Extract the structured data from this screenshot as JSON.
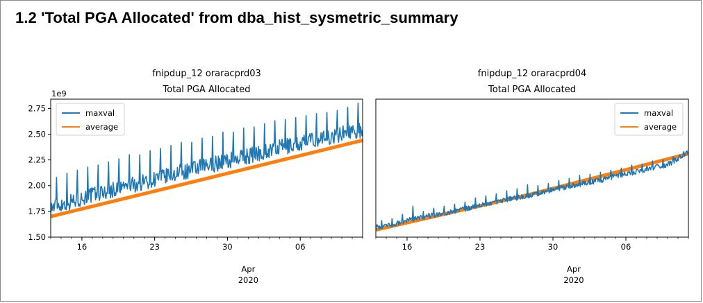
{
  "heading": "1.2  'Total PGA Allocated' from dba_hist_sysmetric_summary",
  "chart_data": [
    {
      "type": "line",
      "title": "fnipdup_12 oraracprd03",
      "subtitle": "Total PGA Allocated",
      "y_offset_label": "1e9",
      "ylim": [
        1.5,
        2.84
      ],
      "yticks": [
        1.5,
        1.75,
        2.0,
        2.25,
        2.5,
        2.75
      ],
      "ytick_labels": [
        "1.50",
        "1.75",
        "2.00",
        "2.25",
        "2.50",
        "2.75"
      ],
      "xlim": [
        "2020-03-13",
        "2020-04-12"
      ],
      "xticks": [
        {
          "date": "2020-03-16",
          "label": "16"
        },
        {
          "date": "2020-03-23",
          "label": "23"
        },
        {
          "date": "2020-03-30",
          "label": "30"
        },
        {
          "date": "2020-04-06",
          "label": "06"
        }
      ],
      "x_month_label": "Apr",
      "x_year_label": "2020",
      "grid": false,
      "legend_position": "upper-left",
      "series": [
        {
          "name": "maxval",
          "color": "#1f77b4",
          "x": [
            "2020-03-13",
            "2020-03-14",
            "2020-03-15",
            "2020-03-16",
            "2020-03-17",
            "2020-03-18",
            "2020-03-19",
            "2020-03-20",
            "2020-03-21",
            "2020-03-22",
            "2020-03-23",
            "2020-03-24",
            "2020-03-25",
            "2020-03-26",
            "2020-03-27",
            "2020-03-28",
            "2020-03-29",
            "2020-03-30",
            "2020-03-31",
            "2020-04-01",
            "2020-04-02",
            "2020-04-03",
            "2020-04-04",
            "2020-04-05",
            "2020-04-06",
            "2020-04-07",
            "2020-04-08",
            "2020-04-09",
            "2020-04-10",
            "2020-04-11",
            "2020-04-12"
          ],
          "values": [
            1.78,
            1.81,
            1.84,
            1.87,
            1.9,
            1.93,
            1.95,
            1.98,
            2.0,
            2.03,
            2.06,
            2.08,
            2.11,
            2.13,
            2.16,
            2.18,
            2.21,
            2.23,
            2.26,
            2.28,
            2.31,
            2.33,
            2.36,
            2.38,
            2.4,
            2.43,
            2.45,
            2.47,
            2.5,
            2.52,
            2.54
          ],
          "peaks": [
            2.08,
            2.12,
            2.15,
            2.18,
            2.2,
            2.23,
            2.26,
            2.3,
            2.3,
            2.34,
            2.36,
            2.39,
            2.42,
            2.42,
            2.46,
            2.48,
            2.52,
            2.52,
            2.56,
            2.57,
            2.6,
            2.63,
            2.64,
            2.66,
            2.68,
            2.7,
            2.71,
            2.73,
            2.76,
            2.8,
            2.83
          ]
        },
        {
          "name": "average",
          "color": "#ff7f0e",
          "x": [
            "2020-03-13",
            "2020-03-28",
            "2020-04-12"
          ],
          "values": [
            1.7,
            2.07,
            2.44
          ]
        }
      ]
    },
    {
      "type": "line",
      "title": "fnipdup_12 oraracprd04",
      "subtitle": "Total PGA Allocated",
      "ylim": [
        1.5,
        2.84
      ],
      "xlim": [
        "2020-03-13",
        "2020-04-12"
      ],
      "xticks": [
        {
          "date": "2020-03-16",
          "label": "16"
        },
        {
          "date": "2020-03-23",
          "label": "23"
        },
        {
          "date": "2020-03-30",
          "label": "30"
        },
        {
          "date": "2020-04-06",
          "label": "06"
        }
      ],
      "x_month_label": "Apr",
      "x_year_label": "2020",
      "grid": false,
      "legend_position": "upper-right",
      "series": [
        {
          "name": "maxval",
          "color": "#1f77b4",
          "x": [
            "2020-03-13",
            "2020-03-14",
            "2020-03-15",
            "2020-03-16",
            "2020-03-17",
            "2020-03-18",
            "2020-03-19",
            "2020-03-20",
            "2020-03-21",
            "2020-03-22",
            "2020-03-23",
            "2020-03-24",
            "2020-03-25",
            "2020-03-26",
            "2020-03-27",
            "2020-03-28",
            "2020-03-29",
            "2020-03-30",
            "2020-03-31",
            "2020-04-01",
            "2020-04-02",
            "2020-04-03",
            "2020-04-04",
            "2020-04-05",
            "2020-04-06",
            "2020-04-07",
            "2020-04-08",
            "2020-04-09",
            "2020-04-10",
            "2020-04-11",
            "2020-04-12"
          ],
          "values": [
            1.59,
            1.61,
            1.63,
            1.66,
            1.68,
            1.7,
            1.72,
            1.74,
            1.76,
            1.78,
            1.81,
            1.83,
            1.85,
            1.87,
            1.89,
            1.91,
            1.93,
            1.96,
            1.98,
            2.0,
            2.02,
            2.04,
            2.06,
            2.09,
            2.11,
            2.13,
            2.16,
            2.18,
            2.2,
            2.26,
            2.33
          ],
          "peaks": [
            1.66,
            1.68,
            1.72,
            1.8,
            1.75,
            1.78,
            1.8,
            1.82,
            1.84,
            1.88,
            1.9,
            1.92,
            1.95,
            1.97,
            2.01,
            2.0,
            2.02,
            2.05,
            2.07,
            2.1,
            2.11,
            2.13,
            2.15,
            2.17,
            2.2,
            2.21,
            2.24,
            2.25,
            2.28,
            2.33,
            2.4
          ]
        },
        {
          "name": "average",
          "color": "#ff7f0e",
          "x": [
            "2020-03-13",
            "2020-03-28",
            "2020-04-12"
          ],
          "values": [
            1.57,
            1.92,
            2.31
          ]
        }
      ]
    }
  ]
}
